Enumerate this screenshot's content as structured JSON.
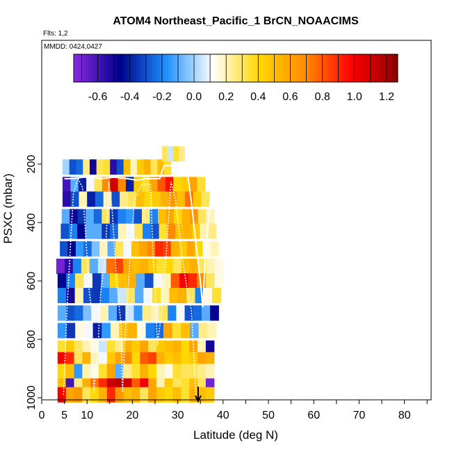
{
  "chart_data": {
    "type": "heatmap",
    "title": "ATOM4 Northeast_Pacific_1 BrCN_NOAACIMS",
    "flights_label": "Flts: 1,2",
    "dates_label": "MMDD: 0424,0427",
    "xlabel": "Latitude (deg N)",
    "ylabel": "PSXC (mbar)",
    "xlim": [
      0,
      85
    ],
    "ylim": [
      1000,
      115
    ],
    "y_reversed": true,
    "grid": false,
    "x_ticks": [
      0,
      5,
      10,
      20,
      30,
      40,
      50,
      60,
      70,
      80
    ],
    "x_minor_ticks": [
      15,
      25,
      35,
      45,
      55,
      65,
      75,
      85
    ],
    "y_ticks": [
      200,
      400,
      600,
      800,
      1000
    ],
    "colorbar": {
      "range": [
        -0.75,
        1.27
      ],
      "ticks": [
        -0.6,
        -0.4,
        -0.2,
        0.0,
        0.2,
        0.4,
        0.6,
        0.8,
        1.0,
        1.2
      ],
      "tick_labels": [
        "-0.6",
        "-0.4",
        "-0.2",
        "0.0",
        "0.2",
        "0.4",
        "0.6",
        "0.8",
        "1.0",
        "1.2"
      ],
      "colors": [
        "#8a2be2",
        "#00008b",
        "#1e90ff",
        "#ffffff",
        "#ffd700",
        "#ff8c00",
        "#ff0000",
        "#8b0000"
      ]
    },
    "marker": {
      "type": "arrow",
      "x": 34.5,
      "y": 985
    },
    "layers": [
      {
        "y": 210,
        "x_start": 4.6,
        "x_end": 28.5,
        "values": [
          0.0,
          -0.3,
          -0.25,
          0.25,
          -0.5,
          0.3,
          0.35,
          -0.55,
          -0.3,
          0.5,
          0.2,
          0.45,
          0.55,
          0.3,
          0.5,
          0.35
        ]
      },
      {
        "y": 165,
        "x_start": 26.5,
        "x_end": 31.5,
        "values": [
          0.3,
          0.05,
          0.35,
          0.25
        ]
      },
      {
        "y": 270,
        "x_start": 4.6,
        "x_end": 36.0,
        "values": [
          -0.6,
          -0.1,
          -0.4,
          0.1,
          0.3,
          0.7,
          1.1,
          0.7,
          -0.4,
          0.45,
          0.35,
          0.6,
          0.8,
          0.95,
          0.4,
          0.45,
          0.6,
          0.35
        ]
      },
      {
        "y": 320,
        "x_start": 4.6,
        "x_end": 37.0,
        "values": [
          -0.55,
          -0.3,
          0.2,
          -0.4,
          -0.25,
          0.2,
          -0.3,
          0.25,
          0.3,
          0.5,
          0.4,
          0.45,
          0.55,
          0.65,
          0.5,
          0.75,
          0.45,
          0.3
        ]
      },
      {
        "y": 380,
        "x_start": 4.4,
        "x_end": 38.0,
        "values": [
          -0.1,
          -0.5,
          -0.35,
          -0.1,
          -0.25,
          0.3,
          -0.35,
          -0.2,
          -0.15,
          -0.3,
          0.25,
          -0.2,
          0.5,
          0.6,
          0.4,
          0.55,
          0.65,
          0.3,
          0.2
        ]
      },
      {
        "y": 430,
        "x_start": 4.2,
        "x_end": 38.5,
        "values": [
          -0.3,
          -0.2,
          -0.45,
          -0.1,
          -0.1,
          -0.35,
          -0.25,
          0.2,
          0.1,
          0.3,
          -0.2,
          -0.3,
          0.35,
          0.7,
          0.5,
          0.55,
          0.45,
          0.2,
          0.25
        ]
      },
      {
        "y": 490,
        "x_start": 4.0,
        "x_end": 39.0,
        "values": [
          -0.3,
          -0.45,
          -0.15,
          -0.25,
          -0.05,
          0.2,
          -0.1,
          0.3,
          0.1,
          0.5,
          0.6,
          0.7,
          0.9,
          0.85,
          0.55,
          0.45,
          0.6,
          0.4,
          0.15,
          0.2
        ]
      },
      {
        "y": 550,
        "x_start": 3.2,
        "x_end": 40.0,
        "values": [
          -0.7,
          -0.55,
          -0.2,
          0.3,
          -0.1,
          0.05,
          0.75,
          0.85,
          0.6,
          0.5,
          0.55,
          0.45,
          0.35,
          0.4,
          0.3,
          0.5,
          0.55,
          0.3,
          0.2,
          0.15
        ]
      },
      {
        "y": 600,
        "x_start": 3.5,
        "x_end": 40.0,
        "values": [
          -0.45,
          -0.2,
          0.3,
          0.1,
          -0.35,
          -0.1,
          0.4,
          0.5,
          0.55,
          -0.1,
          -0.3,
          0.1,
          0.2,
          0.8,
          1.0,
          0.9,
          0.7,
          0.3,
          0.15
        ]
      },
      {
        "y": 650,
        "x_start": 3.5,
        "x_end": 39.5,
        "values": [
          -0.2,
          -0.5,
          0.2,
          -0.3,
          -0.35,
          -0.2,
          -0.1,
          0.05,
          0.3,
          -0.1,
          0.1,
          0.35,
          0.2,
          0.5,
          0.55,
          0.3,
          -0.2,
          0.15,
          0.35
        ]
      },
      {
        "y": 710,
        "x_start": 3.5,
        "x_end": 39.0,
        "values": [
          -0.1,
          -0.3,
          -0.25,
          -0.05,
          0.1,
          0.2,
          -0.1,
          -0.35,
          0.05,
          -0.15,
          0.25,
          0.2,
          0.3,
          -0.2,
          0.1,
          -0.3,
          -0.25,
          -0.1,
          -0.45
        ]
      },
      {
        "y": 770,
        "x_start": 3.5,
        "x_end": 38.5,
        "values": [
          -0.15,
          -0.35,
          0.15,
          0.1,
          -0.4,
          -0.15,
          0.2,
          0.5,
          0.55,
          0.15,
          -0.2,
          -0.25,
          0.6,
          0.35,
          0.5,
          -0.1,
          0.25,
          0.2
        ]
      },
      {
        "y": 830,
        "x_start": 3.5,
        "x_end": 38.0,
        "values": [
          0.35,
          0.45,
          0.3,
          0.2,
          0.15,
          0.05,
          0.35,
          0.25,
          0.55,
          0.45,
          0.6,
          0.3,
          0.45,
          0.5,
          0.55,
          0.4,
          0.6,
          0.2,
          -0.5
        ]
      },
      {
        "y": 870,
        "x_start": 3.5,
        "x_end": 38.0,
        "values": [
          1.0,
          0.9,
          0.3,
          0.55,
          0.2,
          0.1,
          0.45,
          0.6,
          0.7,
          0.4,
          0.8,
          0.85,
          0.55,
          0.45,
          0.5,
          0.4,
          0.45,
          0.6,
          0.55
        ]
      },
      {
        "y": 910,
        "x_start": 3.5,
        "x_end": 38.0,
        "values": [
          0.4,
          0.5,
          -0.15,
          0.2,
          0.15,
          0.35,
          0.6,
          -0.1,
          0.25,
          0.35,
          0.55,
          0.4,
          0.2,
          0.15,
          0.35,
          0.3,
          0.3,
          0.25,
          0.2
        ]
      },
      {
        "y": 960,
        "x_start": 3.5,
        "x_end": 38.0,
        "values": [
          0.5,
          -0.6,
          0.25,
          0.55,
          0.75,
          0.9,
          1.1,
          1.15,
          1.1,
          0.8,
          1.0,
          0.6,
          0.2,
          0.45,
          0.3,
          0.35,
          0.5,
          0.3,
          -0.7
        ]
      },
      {
        "y": 990,
        "x_start": 3.5,
        "x_end": 38.0,
        "values": [
          1.0,
          0.6,
          0.65,
          0.3,
          0.4,
          0.55,
          0.9,
          0.65,
          0.5,
          0.55,
          0.3,
          0.6,
          0.45,
          0.4,
          0.5,
          0.35,
          0.55,
          0.5,
          0.45
        ]
      }
    ],
    "flight_track_1": [
      [
        4.8,
        990
      ],
      [
        5.5,
        720
      ],
      [
        6.5,
        430
      ],
      [
        7,
        300
      ],
      [
        8,
        250
      ],
      [
        9,
        280
      ],
      [
        10,
        520
      ],
      [
        10.5,
        640
      ],
      [
        11,
        700
      ],
      [
        11.5,
        980
      ],
      [
        12.5,
        800
      ],
      [
        13,
        640
      ],
      [
        14,
        520
      ],
      [
        14.8,
        260
      ],
      [
        15.5,
        350
      ],
      [
        16.5,
        600
      ],
      [
        17.5,
        750
      ],
      [
        17.8,
        980
      ],
      [
        18.5,
        760
      ],
      [
        19.5,
        520
      ],
      [
        20.5,
        320
      ],
      [
        22,
        270
      ],
      [
        24,
        270
      ],
      [
        24.5,
        500
      ],
      [
        25,
        620
      ],
      [
        25.5,
        820
      ],
      [
        26.5,
        700
      ],
      [
        27.5,
        500
      ],
      [
        28.5,
        260
      ],
      [
        29.5,
        320
      ],
      [
        31,
        520
      ],
      [
        32,
        620
      ],
      [
        33,
        700
      ],
      [
        34,
        990
      ]
    ],
    "flight_track_2": [
      [
        5,
        250
      ],
      [
        7,
        250
      ],
      [
        9,
        245
      ],
      [
        11,
        245
      ],
      [
        13,
        250
      ],
      [
        16,
        245
      ],
      [
        19,
        250
      ],
      [
        21,
        255
      ],
      [
        23,
        250
      ],
      [
        26,
        250
      ],
      [
        27,
        205
      ],
      [
        30,
        205
      ],
      [
        32,
        210
      ],
      [
        33,
        330
      ],
      [
        34,
        470
      ],
      [
        35,
        600
      ],
      [
        35.5,
        690
      ],
      [
        36,
        540
      ],
      [
        37,
        350
      ],
      [
        38,
        250
      ]
    ]
  }
}
